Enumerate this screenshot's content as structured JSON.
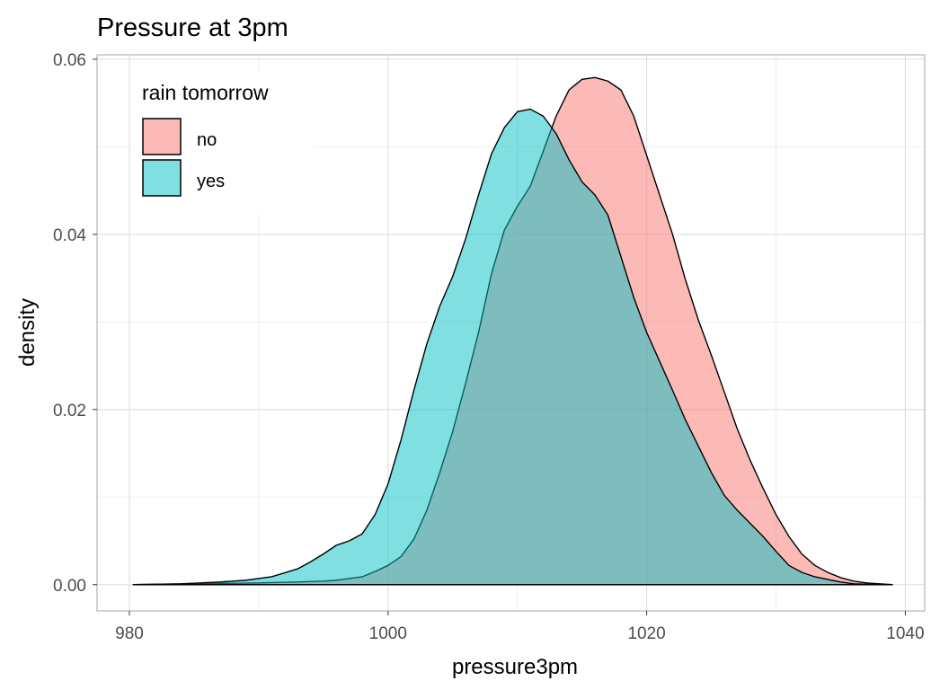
{
  "chart_data": {
    "type": "density",
    "title": "Pressure at 3pm",
    "xlabel": "pressure3pm",
    "ylabel": "density",
    "xlim": [
      977.5,
      1041.5
    ],
    "ylim": [
      -0.003,
      0.0605
    ],
    "x_ticks": [
      980,
      1000,
      1020,
      1040
    ],
    "x_tick_labels": [
      "980",
      "1000",
      "1020",
      "1040"
    ],
    "y_ticks": [
      0,
      0.02,
      0.04,
      0.06
    ],
    "y_tick_labels": [
      "0.00",
      "0.02",
      "0.04",
      "0.06"
    ],
    "grid": true,
    "legend": {
      "title": "rain tomorrow",
      "placement": "top-left inside",
      "entries": [
        {
          "label": "no",
          "color": "#F8766D"
        },
        {
          "label": "yes",
          "color": "#00BFC4"
        }
      ]
    },
    "series": [
      {
        "name": "no",
        "color": "#F8766D",
        "points": [
          [
            980.3,
            0
          ],
          [
            985,
            0.0001
          ],
          [
            990,
            0.0002
          ],
          [
            993,
            0.0003
          ],
          [
            995,
            0.0004
          ],
          [
            996,
            0.0005
          ],
          [
            997,
            0.0007
          ],
          [
            998,
            0.0009
          ],
          [
            999,
            0.0015
          ],
          [
            1000,
            0.0022
          ],
          [
            1001,
            0.0032
          ],
          [
            1002,
            0.0052
          ],
          [
            1003,
            0.0085
          ],
          [
            1004,
            0.0128
          ],
          [
            1005,
            0.0175
          ],
          [
            1006,
            0.023
          ],
          [
            1007,
            0.0288
          ],
          [
            1008,
            0.0355
          ],
          [
            1009,
            0.0405
          ],
          [
            1010,
            0.0432
          ],
          [
            1011,
            0.0455
          ],
          [
            1012,
            0.0495
          ],
          [
            1013,
            0.0535
          ],
          [
            1014,
            0.0565
          ],
          [
            1015,
            0.0577
          ],
          [
            1016,
            0.0579
          ],
          [
            1017,
            0.0575
          ],
          [
            1018,
            0.0565
          ],
          [
            1019,
            0.0535
          ],
          [
            1020,
            0.049
          ],
          [
            1021,
            0.0445
          ],
          [
            1022,
            0.04
          ],
          [
            1023,
            0.0348
          ],
          [
            1024,
            0.0302
          ],
          [
            1025,
            0.0262
          ],
          [
            1026,
            0.022
          ],
          [
            1027,
            0.0178
          ],
          [
            1028,
            0.0142
          ],
          [
            1029,
            0.011
          ],
          [
            1030,
            0.008
          ],
          [
            1031,
            0.0055
          ],
          [
            1032,
            0.0035
          ],
          [
            1033,
            0.0022
          ],
          [
            1034,
            0.0014
          ],
          [
            1035,
            0.0008
          ],
          [
            1036,
            0.0004
          ],
          [
            1037,
            0.0002
          ],
          [
            1038,
            0.0001
          ],
          [
            1039,
            0
          ]
        ]
      },
      {
        "name": "yes",
        "color": "#00BFC4",
        "points": [
          [
            980.3,
            0
          ],
          [
            984,
            0.0001
          ],
          [
            987,
            0.0003
          ],
          [
            989,
            0.0005
          ],
          [
            991,
            0.0009
          ],
          [
            993,
            0.0018
          ],
          [
            994,
            0.0026
          ],
          [
            995,
            0.0035
          ],
          [
            996,
            0.0045
          ],
          [
            997,
            0.005
          ],
          [
            998,
            0.0058
          ],
          [
            999,
            0.008
          ],
          [
            1000,
            0.0115
          ],
          [
            1001,
            0.0165
          ],
          [
            1002,
            0.0222
          ],
          [
            1003,
            0.0275
          ],
          [
            1004,
            0.0318
          ],
          [
            1005,
            0.0352
          ],
          [
            1006,
            0.0395
          ],
          [
            1007,
            0.0445
          ],
          [
            1008,
            0.0492
          ],
          [
            1009,
            0.0522
          ],
          [
            1010,
            0.054
          ],
          [
            1011,
            0.0543
          ],
          [
            1012,
            0.0535
          ],
          [
            1013,
            0.0515
          ],
          [
            1014,
            0.0485
          ],
          [
            1015,
            0.046
          ],
          [
            1016,
            0.0445
          ],
          [
            1017,
            0.0422
          ],
          [
            1018,
            0.0375
          ],
          [
            1019,
            0.0328
          ],
          [
            1020,
            0.0288
          ],
          [
            1021,
            0.0255
          ],
          [
            1022,
            0.0222
          ],
          [
            1023,
            0.0188
          ],
          [
            1024,
            0.0158
          ],
          [
            1025,
            0.0128
          ],
          [
            1026,
            0.0102
          ],
          [
            1027,
            0.0085
          ],
          [
            1028,
            0.007
          ],
          [
            1029,
            0.0055
          ],
          [
            1030,
            0.0038
          ],
          [
            1031,
            0.0022
          ],
          [
            1032,
            0.0014
          ],
          [
            1033,
            0.0009
          ],
          [
            1034,
            0.0006
          ],
          [
            1035,
            0.0003
          ],
          [
            1036,
            0.0001
          ],
          [
            1038,
            0
          ]
        ]
      }
    ]
  }
}
